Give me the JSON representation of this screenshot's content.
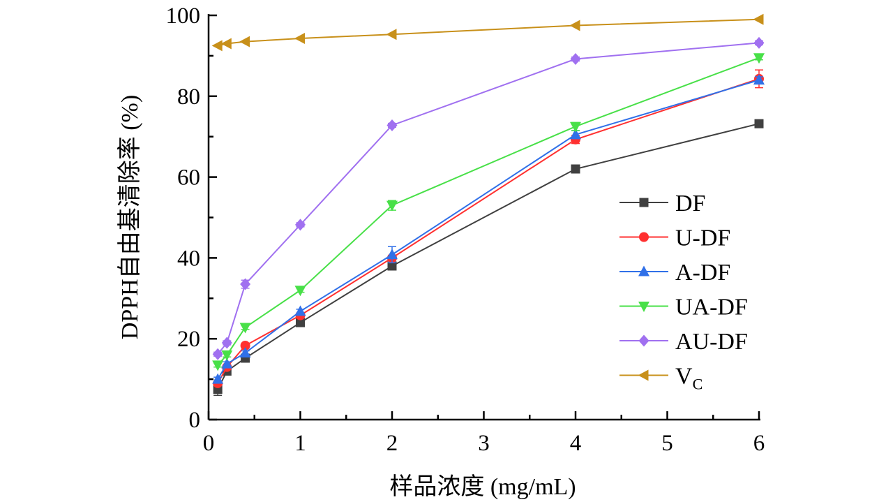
{
  "chart_data": {
    "type": "line",
    "title": "",
    "xlabel": "样品浓度 (mg/mL)",
    "ylabel": "DPPH自由基清除率 (%)",
    "x_ticks": [
      "0",
      "1",
      "2",
      "3",
      "4",
      "5",
      "6"
    ],
    "y_ticks": [
      "0",
      "20",
      "40",
      "60",
      "80",
      "100"
    ],
    "ylim": [
      0,
      100
    ],
    "x_categories": [
      "0.1",
      "0.2",
      "0.4",
      "1",
      "2",
      "4",
      "6"
    ],
    "legend_position": "right",
    "grid": false,
    "series": [
      {
        "name": "DF",
        "marker": "square",
        "color": "#404040",
        "values": [
          7.5,
          12.0,
          15.2,
          24.0,
          38.0,
          62.0,
          73.2
        ],
        "errors": [
          1.5,
          0.5,
          0.5,
          0.5,
          0.6,
          0.5,
          0.5
        ]
      },
      {
        "name": "U-DF",
        "marker": "circle",
        "color": "#ff3030",
        "values": [
          9.0,
          13.0,
          18.3,
          25.8,
          40.0,
          69.3,
          84.3
        ],
        "errors": [
          0.5,
          0.5,
          0.6,
          0.5,
          0.6,
          1.0,
          2.2
        ]
      },
      {
        "name": "A-DF",
        "marker": "triangle-up",
        "color": "#3070e8",
        "values": [
          10.0,
          13.8,
          16.5,
          26.8,
          40.8,
          70.5,
          84.0
        ],
        "errors": [
          0.5,
          0.5,
          0.5,
          0.5,
          2.0,
          1.0,
          0.8
        ]
      },
      {
        "name": "UA-DF",
        "marker": "triangle-down",
        "color": "#48e048",
        "values": [
          13.5,
          16.0,
          22.8,
          32.0,
          53.0,
          72.5,
          89.5
        ],
        "errors": [
          0.5,
          0.5,
          0.5,
          0.5,
          1.2,
          1.0,
          0.5
        ]
      },
      {
        "name": "AU-DF",
        "marker": "diamond",
        "color": "#a070f0",
        "values": [
          16.2,
          19.0,
          33.5,
          48.2,
          72.8,
          89.2,
          93.2
        ],
        "errors": [
          0.5,
          0.5,
          1.0,
          0.5,
          0.5,
          0.5,
          0.5
        ]
      },
      {
        "name": "VC",
        "label_main": "V",
        "label_sub": "C",
        "marker": "triangle-left",
        "color": "#c8901a",
        "values": [
          92.5,
          93.0,
          93.5,
          94.3,
          95.3,
          97.5,
          99.0
        ],
        "errors": [
          0,
          0,
          0,
          0,
          0,
          0,
          0
        ]
      }
    ]
  }
}
